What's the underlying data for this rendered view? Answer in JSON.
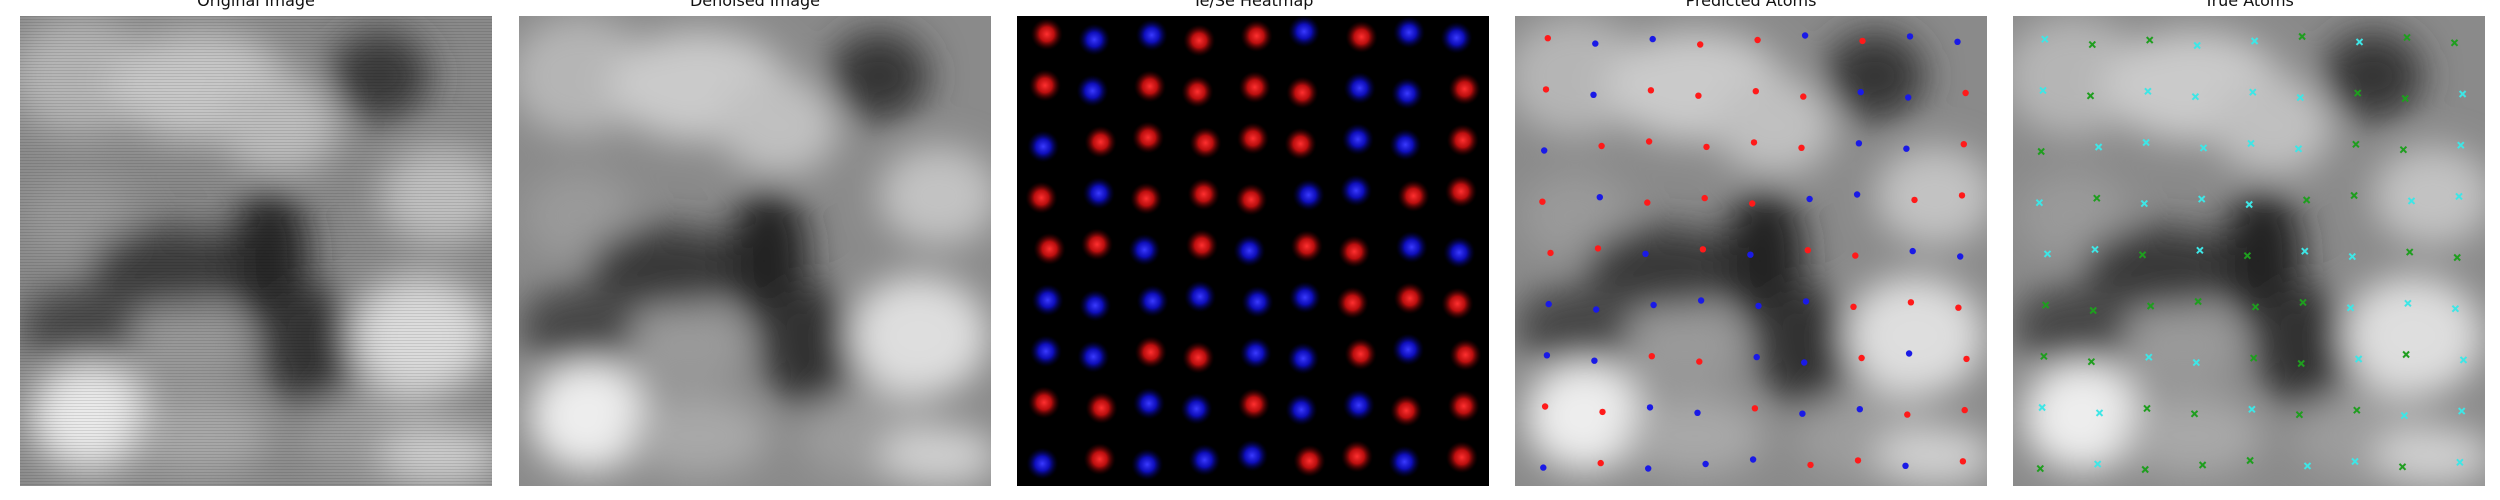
{
  "panels": {
    "original": {
      "title": "Original Image"
    },
    "denoised": {
      "title": "Denoised Image"
    },
    "heatmap": {
      "title": "Te/Se Heatmap"
    },
    "predicted": {
      "title": "Predicted Atoms"
    },
    "true": {
      "title": "True Atoms"
    }
  },
  "colors": {
    "te_heatmap": "#e01010",
    "se_heatmap": "#1a1aff",
    "predicted_te": "#ff1a1a",
    "predicted_se": "#1a1ae6",
    "true_te": "#3ee6e6",
    "true_se": "#1f9e1f",
    "background": "#000000"
  },
  "atom_grid": {
    "rows": 9,
    "cols": 9
  }
}
